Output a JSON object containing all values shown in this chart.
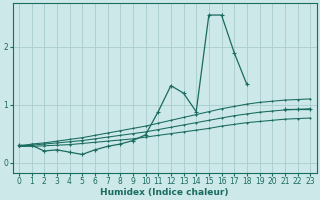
{
  "xlabel": "Humidex (Indice chaleur)",
  "background_color": "#cce8e8",
  "grid_color": "#aacccc",
  "line_color": "#1a6b60",
  "xlim": [
    -0.5,
    23.5
  ],
  "ylim": [
    -0.18,
    2.75
  ],
  "yticks": [
    0,
    1,
    2
  ],
  "xticks": [
    0,
    1,
    2,
    3,
    4,
    5,
    6,
    7,
    8,
    9,
    10,
    11,
    12,
    13,
    14,
    15,
    16,
    17,
    18,
    19,
    20,
    21,
    22,
    23
  ],
  "series": {
    "main": [
      0.3,
      0.3,
      0.2,
      0.22,
      0.18,
      0.14,
      0.22,
      0.28,
      0.32,
      0.38,
      0.48,
      0.88,
      1.33,
      1.2,
      0.88,
      2.55,
      2.55,
      1.9,
      1.35,
      null,
      null,
      0.93,
      0.93,
      0.93
    ],
    "upper_trend": [
      0.28,
      0.32,
      0.34,
      0.37,
      0.4,
      0.43,
      0.47,
      0.51,
      0.55,
      0.59,
      0.63,
      0.68,
      0.73,
      0.78,
      0.83,
      0.88,
      0.93,
      0.97,
      1.01,
      1.04,
      1.06,
      1.08,
      1.09,
      1.1
    ],
    "mid_trend": [
      0.28,
      0.3,
      0.32,
      0.34,
      0.36,
      0.38,
      0.41,
      0.44,
      0.47,
      0.5,
      0.53,
      0.57,
      0.61,
      0.65,
      0.69,
      0.73,
      0.77,
      0.81,
      0.84,
      0.87,
      0.89,
      0.91,
      0.92,
      0.93
    ],
    "lower_trend": [
      0.28,
      0.28,
      0.29,
      0.3,
      0.31,
      0.33,
      0.35,
      0.37,
      0.39,
      0.41,
      0.44,
      0.47,
      0.5,
      0.53,
      0.56,
      0.59,
      0.63,
      0.66,
      0.69,
      0.71,
      0.73,
      0.75,
      0.76,
      0.77
    ]
  }
}
